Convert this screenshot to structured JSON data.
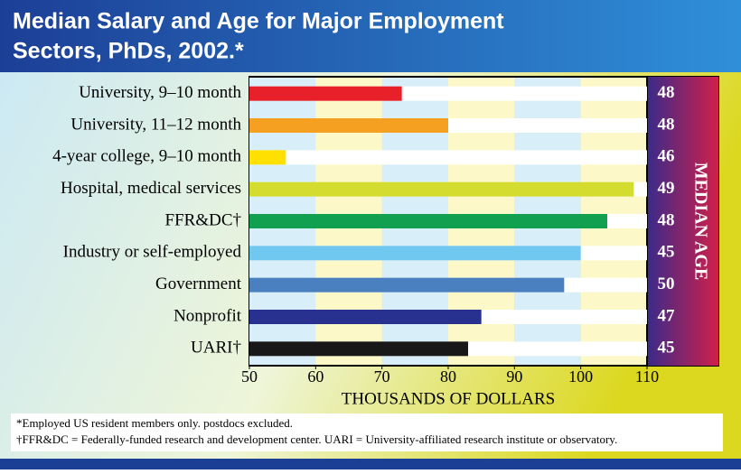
{
  "chart_data": {
    "type": "bar",
    "orientation": "horizontal",
    "title_lines": [
      "Median Salary and Age for Major Employment",
      "Sectors, PhDs, 2002.*"
    ],
    "categories": [
      "University, 9–10 month",
      "University, 11–12 month",
      "4-year college, 9–10 month",
      "Hospital, medical services",
      "FFR&DC†",
      "Industry or self-employed",
      "Government",
      "Nonprofit",
      "UARI†"
    ],
    "values": [
      73,
      80,
      55.5,
      108,
      104,
      100,
      97.5,
      85,
      83
    ],
    "colors": [
      "#e8202a",
      "#f5a020",
      "#ffe000",
      "#d4dc30",
      "#10a050",
      "#70c8f0",
      "#4a80c0",
      "#283090",
      "#181818"
    ],
    "xlim": [
      50,
      110
    ],
    "xticks": [
      50,
      60,
      70,
      80,
      90,
      100,
      110
    ],
    "xlabel": "THOUSANDS OF DOLLARS",
    "median_age": {
      "label": "MEDIAN AGE",
      "values": [
        48,
        48,
        46,
        49,
        48,
        45,
        50,
        47,
        45
      ]
    },
    "footnotes": [
      "*Employed US resident members only. postdocs excluded.",
      "†FFR&DC = Federally-funded research and development center. UARI = University-affiliated research institute or observatory."
    ]
  }
}
